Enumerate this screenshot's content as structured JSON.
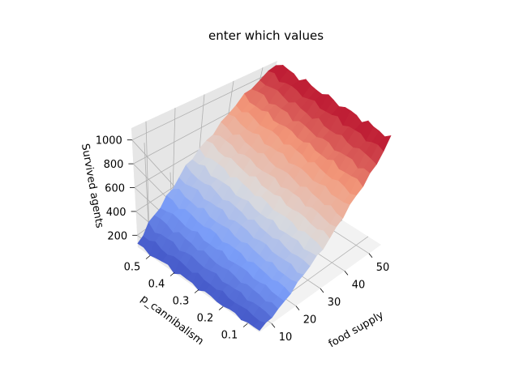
{
  "chart_data": {
    "type": "surface",
    "title": "enter which values",
    "xlabel": "food supply",
    "ylabel": "p_cannibalism",
    "zlabel": "Survived agents",
    "xlim": [
      5,
      55
    ],
    "ylim": [
      0.05,
      0.55
    ],
    "zlim": [
      100,
      1100
    ],
    "x_ticks": [
      "10",
      "20",
      "30",
      "40",
      "50"
    ],
    "y_ticks": [
      "0.1",
      "0.2",
      "0.3",
      "0.4",
      "0.5"
    ],
    "z_ticks": [
      "200",
      "400",
      "600",
      "800",
      "1000"
    ],
    "x_range": [
      5,
      55
    ],
    "y_range": [
      0.05,
      0.55
    ],
    "grid_size": 21,
    "z_at_food_min": 120,
    "z_at_food_max": 1080,
    "colormap": "coolwarm",
    "colors": {
      "low": "#3b4cc0",
      "mid": "#dddddd",
      "high": "#b40426",
      "pane": "#f2f2f2",
      "grid": "#b0b0b0"
    }
  }
}
